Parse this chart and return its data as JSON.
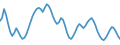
{
  "x": [
    0,
    1,
    2,
    3,
    4,
    5,
    6,
    7,
    8,
    9,
    10,
    11,
    12,
    13,
    14,
    15,
    16,
    17,
    18,
    19,
    20,
    21,
    22,
    23,
    24,
    25,
    26,
    27,
    28,
    29,
    30,
    31,
    32,
    33,
    34,
    35,
    36,
    37,
    38,
    39,
    40,
    41,
    42,
    43,
    44,
    45,
    46,
    47,
    48,
    49,
    50,
    51,
    52,
    53,
    54,
    55,
    56,
    57,
    58,
    59
  ],
  "y": [
    60,
    65,
    80,
    70,
    55,
    42,
    35,
    40,
    48,
    42,
    35,
    30,
    32,
    38,
    48,
    58,
    68,
    75,
    80,
    82,
    80,
    75,
    82,
    88,
    85,
    78,
    68,
    60,
    55,
    58,
    65,
    62,
    52,
    40,
    32,
    30,
    35,
    42,
    50,
    55,
    52,
    48,
    52,
    58,
    62,
    65,
    60,
    52,
    42,
    35,
    30,
    28,
    32,
    38,
    45,
    50,
    48,
    42,
    35,
    30
  ],
  "line_color": "#4393c7",
  "line_width": 1.2,
  "background_color": "#ffffff",
  "ylim": [
    20,
    95
  ]
}
